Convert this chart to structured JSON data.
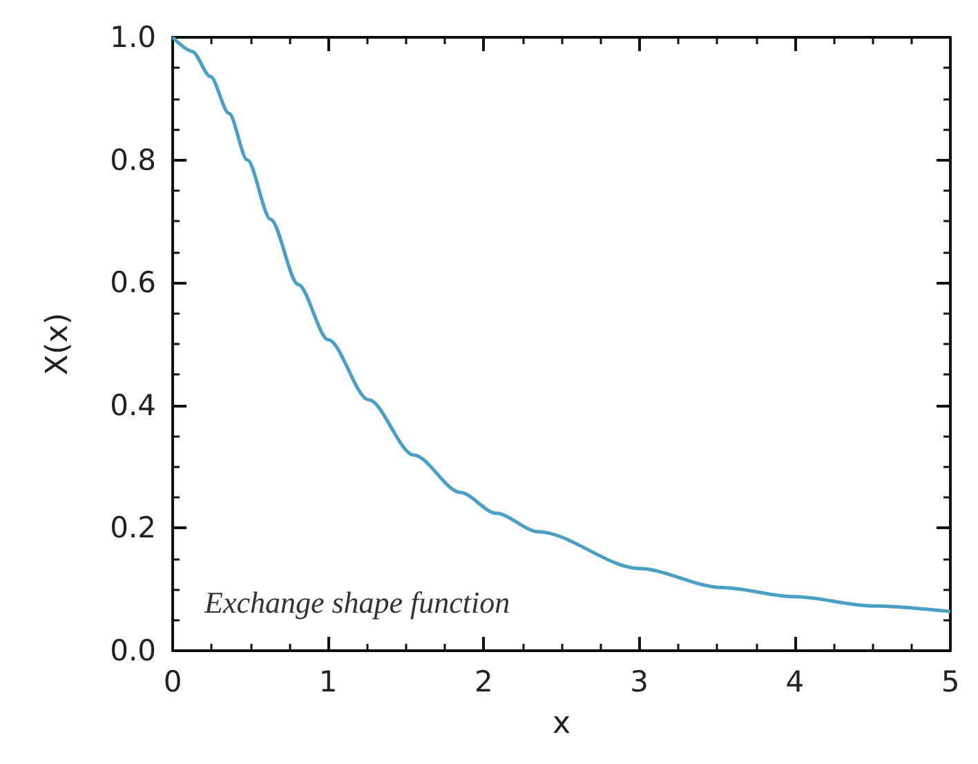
{
  "chart_data": {
    "type": "line",
    "xlabel": "x",
    "ylabel": "X(x)",
    "annotations": [
      "Exchange shape function"
    ],
    "xlim": [
      0,
      5
    ],
    "ylim": [
      0,
      1
    ],
    "xticks": [
      0,
      1,
      2,
      3,
      4,
      5
    ],
    "yticks": [
      {
        "value": 0,
        "label": "0.0"
      },
      {
        "value": 0.2,
        "label": "0.2"
      },
      {
        "value": 0.4,
        "label": "0.4"
      },
      {
        "value": 0.6,
        "label": "0.6"
      },
      {
        "value": 0.8,
        "label": "0.8"
      },
      {
        "value": 1,
        "label": "1.0"
      }
    ],
    "marker": "none",
    "line_style": "solid",
    "series": [
      {
        "color": "#4a9fc4",
        "x": [
          0,
          0.125,
          0.243,
          0.362,
          0.48,
          0.63,
          0.807,
          1.0,
          1.26,
          1.55,
          1.85,
          2.08,
          2.35,
          3.0,
          3.53,
          4.0,
          4.5,
          5.0
        ],
        "values": [
          1.0,
          0.977,
          0.936,
          0.876,
          0.8,
          0.703,
          0.597,
          0.507,
          0.409,
          0.319,
          0.258,
          0.224,
          0.194,
          0.134,
          0.103,
          0.088,
          0.073,
          0.064
        ]
      }
    ]
  }
}
